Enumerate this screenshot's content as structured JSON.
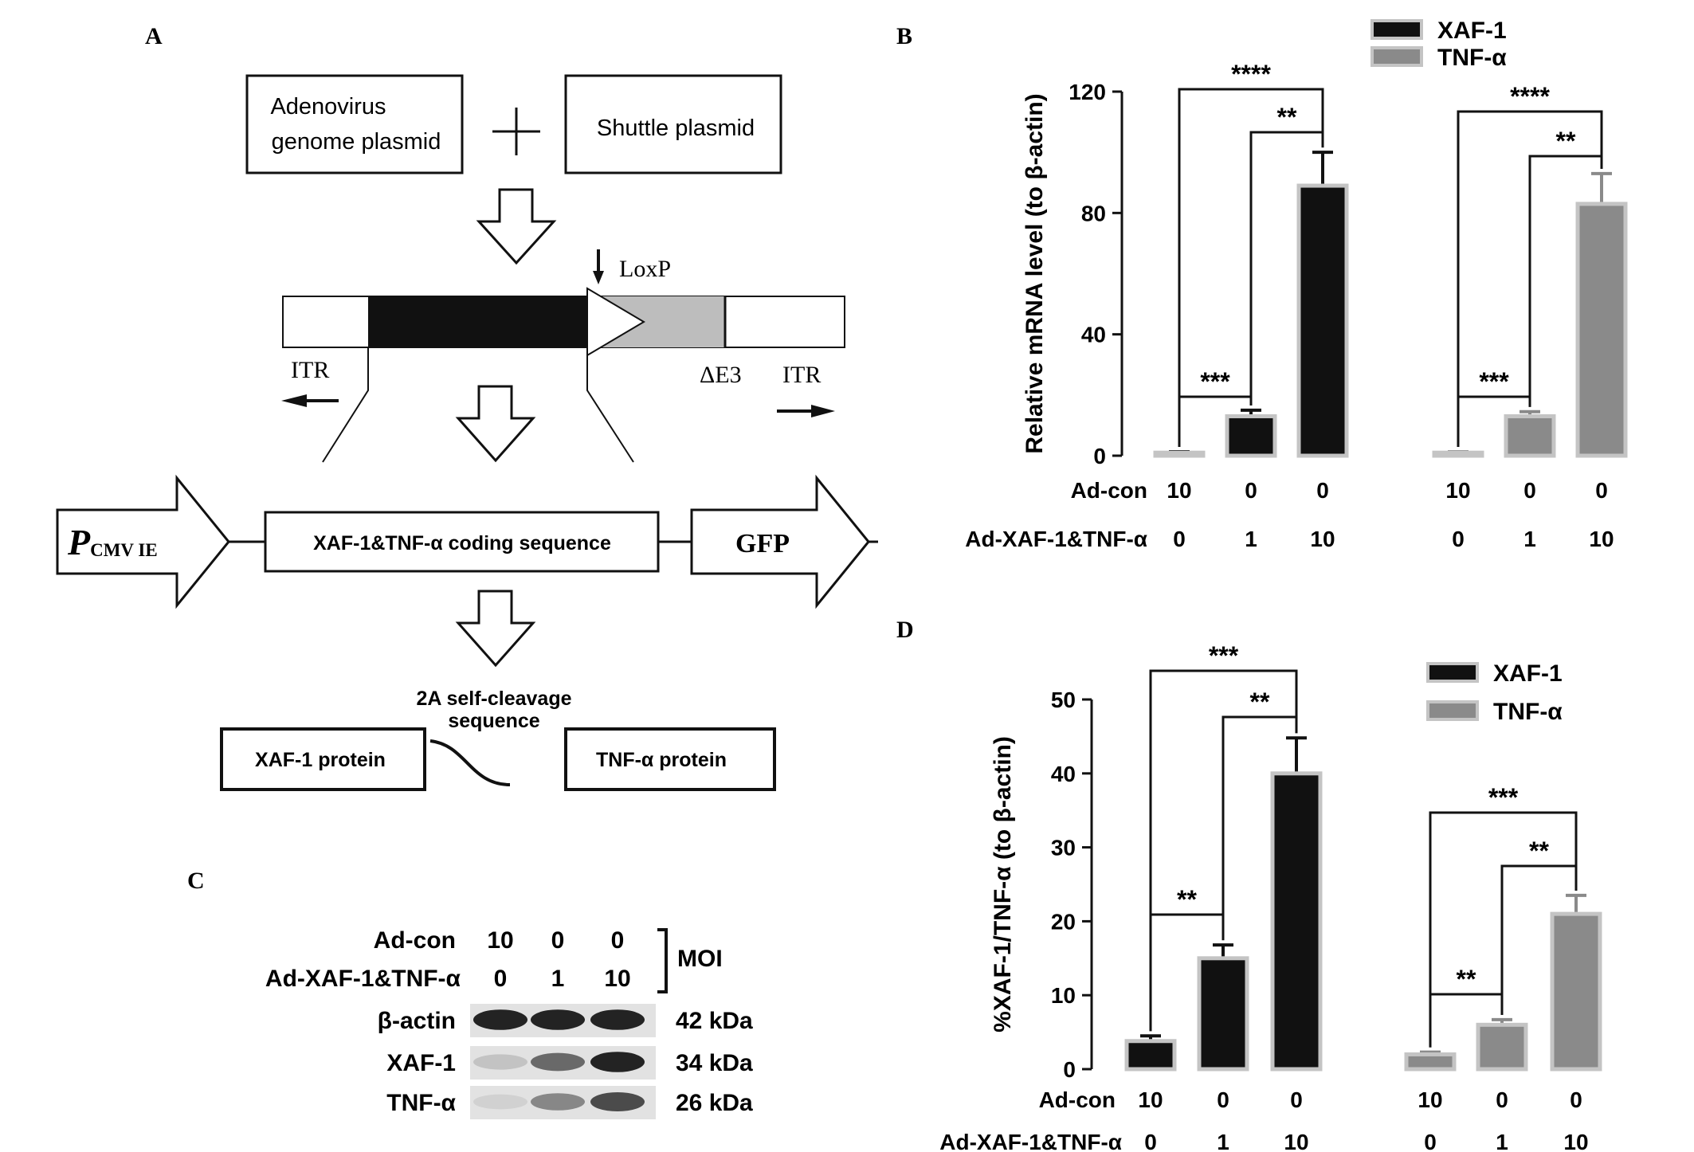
{
  "panel_labels": {
    "a": "A",
    "b": "B",
    "c": "C",
    "d": "D"
  },
  "panel_a": {
    "box_adenovirus_line1": "Adenovirus",
    "box_adenovirus_line2": "genome plasmid",
    "plus": "+",
    "box_shuttle": "Shuttle plasmid",
    "loxp": "LoxP",
    "itr_left": "ITR",
    "delta_e3": "ΔE3",
    "itr_right": "ITR",
    "promoter_main": "P",
    "promoter_sub": "CMV IE",
    "coding_sequence": "XAF-1&TNF-α coding sequence",
    "gfp": "GFP",
    "cleavage_line1": "2A self-cleavage",
    "cleavage_line2": "sequence",
    "protein_left": "XAF-1 protein",
    "protein_right": "TNF-α protein"
  },
  "panel_c": {
    "row_adcon_label": "Ad-con",
    "row_adxaf_label": "Ad-XAF-1&TNF-α",
    "adcon_values": [
      "10",
      "0",
      "0"
    ],
    "adxaf_values": [
      "0",
      "1",
      "10"
    ],
    "moi": "MOI",
    "blots": [
      {
        "name": "β-actin",
        "size": "42 kDa",
        "intensity": [
          0.95,
          0.95,
          0.95
        ]
      },
      {
        "name": "XAF-1",
        "size": "34 kDa",
        "intensity": [
          0.15,
          0.6,
          0.95
        ]
      },
      {
        "name": "TNF-α",
        "size": "26 kDa",
        "intensity": [
          0.08,
          0.45,
          0.75
        ]
      }
    ]
  },
  "chart_data": [
    {
      "panel": "B",
      "type": "bar",
      "ylabel": "Relative mRNA level (to β-actin)",
      "ylim": [
        0,
        120
      ],
      "yticks": [
        "0",
        "40",
        "80",
        "120"
      ],
      "legend": [
        "XAF-1",
        "TNF-α"
      ],
      "legend_position": "top-right",
      "row_labels": [
        "Ad-con",
        "Ad-XAF-1&TNF-α"
      ],
      "adcon": [
        "10",
        "0",
        "0",
        "10",
        "0",
        "0"
      ],
      "adxaf": [
        "0",
        "1",
        "10",
        "0",
        "1",
        "10"
      ],
      "series": [
        {
          "name": "XAF-1",
          "color": "#111111",
          "values": [
            1,
            13,
            89
          ],
          "errors": [
            0.3,
            2,
            11
          ]
        },
        {
          "name": "TNF-α",
          "color": "#8a8a8a",
          "values": [
            1,
            13,
            83
          ],
          "errors": [
            0.3,
            1.5,
            10
          ]
        }
      ],
      "significance": [
        {
          "series": 0,
          "from": 0,
          "to": 1,
          "label": "***"
        },
        {
          "series": 0,
          "from": 1,
          "to": 2,
          "label": "**"
        },
        {
          "series": 0,
          "from": 0,
          "to": 2,
          "label": "****"
        },
        {
          "series": 1,
          "from": 0,
          "to": 1,
          "label": "***"
        },
        {
          "series": 1,
          "from": 1,
          "to": 2,
          "label": "**"
        },
        {
          "series": 1,
          "from": 0,
          "to": 2,
          "label": "****"
        }
      ]
    },
    {
      "panel": "D",
      "type": "bar",
      "ylabel": "%XAF-1/TNF-α (to β-actin)",
      "ylim": [
        0,
        50
      ],
      "yticks": [
        "0",
        "10",
        "20",
        "30",
        "40",
        "50"
      ],
      "legend": [
        "XAF-1",
        "TNF-α"
      ],
      "legend_position": "top-right",
      "row_labels": [
        "Ad-con",
        "Ad-XAF-1&TNF-α"
      ],
      "adcon": [
        "10",
        "0",
        "0",
        "10",
        "0",
        "0"
      ],
      "adxaf": [
        "0",
        "1",
        "10",
        "0",
        "1",
        "10"
      ],
      "series": [
        {
          "name": "XAF-1",
          "color": "#111111",
          "values": [
            3.8,
            15,
            40
          ],
          "errors": [
            0.7,
            1.8,
            4.8
          ]
        },
        {
          "name": "TNF-α",
          "color": "#8a8a8a",
          "values": [
            2,
            6,
            21
          ],
          "errors": [
            0.3,
            0.7,
            2.5
          ]
        }
      ],
      "significance": [
        {
          "series": 0,
          "from": 0,
          "to": 1,
          "label": "**"
        },
        {
          "series": 0,
          "from": 1,
          "to": 2,
          "label": "**"
        },
        {
          "series": 0,
          "from": 0,
          "to": 2,
          "label": "***"
        },
        {
          "series": 1,
          "from": 0,
          "to": 1,
          "label": "**"
        },
        {
          "series": 1,
          "from": 1,
          "to": 2,
          "label": "**"
        },
        {
          "series": 1,
          "from": 0,
          "to": 2,
          "label": "***"
        }
      ]
    }
  ]
}
